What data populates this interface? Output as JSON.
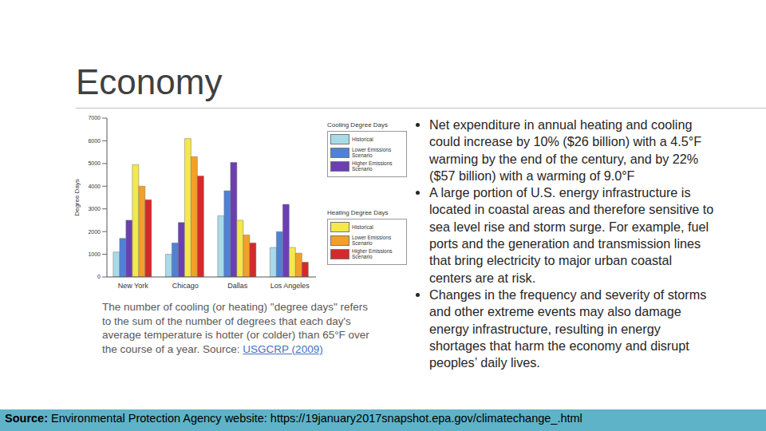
{
  "slide": {
    "title": "Economy",
    "bullets": [
      "Net expenditure in annual heating and cooling could increase by 10% ($26 billion) with a 4.5°F warming by the end of the century, and by 22% ($57 billion) with a warming of 9.0°F",
      "A large portion of U.S. energy infrastructure is located in coastal areas and therefore sensitive to sea level rise and storm surge. For example, fuel ports and the generation and transmission lines that bring electricity to major urban coastal centers are at risk.",
      "Changes in the frequency and severity of storms and other extreme events may also damage energy infrastructure, resulting in energy shortages that harm the economy and disrupt peoples’ daily lives."
    ],
    "caption": {
      "text": "The number of cooling (or heating) \"degree days\" refers to the sum of the number of degrees that each day's average temperature is hotter (or colder) than 65°F over the course of a year.  Source:",
      "link": "USGCRP (2009)"
    },
    "source": {
      "label": "Source:",
      "text": "Environmental Protection Agency website: https://19january2017snapshot.epa.gov/climatechange_.html"
    }
  },
  "chart_data": {
    "type": "bar",
    "y_label": "Degree Days",
    "categories": [
      "New York",
      "Chicago",
      "Dallas",
      "Los Angeles"
    ],
    "series": [
      {
        "name": "Historical",
        "group": "Cooling Degree Days",
        "color": "#a8dbe8",
        "values": [
          1100,
          1000,
          2700,
          1300
        ]
      },
      {
        "name": "Lower Emissions Scenario",
        "group": "Cooling Degree Days",
        "color": "#4f82d6",
        "values": [
          1700,
          1500,
          3800,
          2000
        ]
      },
      {
        "name": "Higher Emissions Scenario",
        "group": "Cooling Degree Days",
        "color": "#6b3fb3",
        "values": [
          2500,
          2400,
          5050,
          3200
        ]
      },
      {
        "name": "Historical",
        "group": "Heating Degree Days",
        "color": "#f4e84a",
        "values": [
          4950,
          6100,
          2500,
          1300
        ]
      },
      {
        "name": "Lower Emissions Scenario",
        "group": "Heating Degree Days",
        "color": "#f2a02a",
        "values": [
          4000,
          5300,
          1850,
          1050
        ]
      },
      {
        "name": "Higher Emissions Scenario",
        "group": "Heating Degree Days",
        "color": "#d42a2a",
        "values": [
          3400,
          4450,
          1500,
          650
        ]
      }
    ],
    "ylim": [
      0,
      7000
    ],
    "yticks": [
      0,
      1000,
      2000,
      3000,
      4000,
      5000,
      6000,
      7000
    ],
    "grid": false,
    "legend": "right"
  }
}
